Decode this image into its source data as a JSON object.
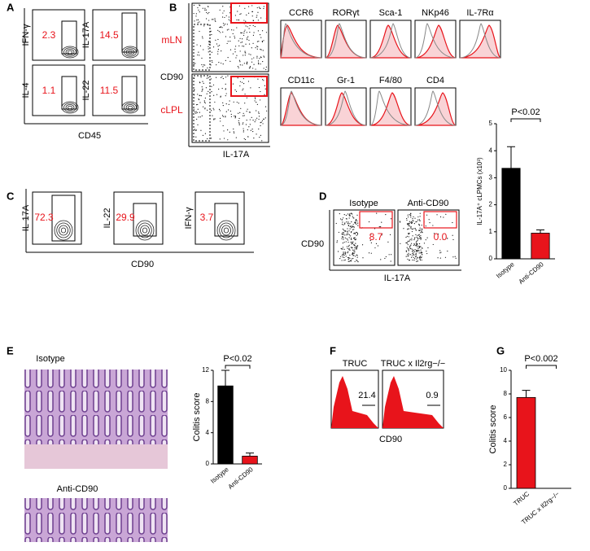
{
  "panels": {
    "A": {
      "letter": "A",
      "x_label": "CD45",
      "gates": [
        {
          "y_label": "IFN-γ",
          "value": "2.3"
        },
        {
          "y_label": "IL-17A",
          "value": "14.5"
        },
        {
          "y_label": "IL-4",
          "value": "1.1"
        },
        {
          "y_label": "IL-22",
          "value": "11.5"
        }
      ]
    },
    "B": {
      "letter": "B",
      "rows": [
        "mLN",
        "cLPL"
      ],
      "y_label": "CD90",
      "x_label": "IL-17A",
      "histograms": [
        "CCR6",
        "RORγt",
        "Sca-1",
        "NKp46",
        "IL-7Rα",
        "CD11c",
        "Gr-1",
        "F4/80",
        "CD4"
      ]
    },
    "C": {
      "letter": "C",
      "x_label": "CD90",
      "gates": [
        {
          "y_label": "IL-17A",
          "value": "72.3"
        },
        {
          "y_label": "IL-22",
          "value": "29.9"
        },
        {
          "y_label": "IFN-γ",
          "value": "3.7"
        }
      ]
    },
    "D": {
      "letter": "D",
      "y_label": "CD90",
      "x_label": "IL-17A",
      "plots": [
        {
          "title": "Isotype",
          "value": "8.7"
        },
        {
          "title": "Anti-CD90",
          "value": "0.0"
        }
      ]
    },
    "E": {
      "letter": "E",
      "images": [
        "Isotype",
        "Anti-CD90"
      ]
    },
    "F": {
      "letter": "F",
      "x_label": "CD90",
      "plots": [
        {
          "title": "TRUC",
          "value": "21.4"
        },
        {
          "title": "TRUC x Il2rg−/−",
          "value": "0.9"
        }
      ]
    },
    "G": {
      "letter": "G"
    }
  },
  "chart_data": [
    {
      "type": "bar",
      "y_label": "IL-17A⁺ cLPMCs (x10³)",
      "categories": [
        "Isotype",
        "Anti-CD90"
      ],
      "values": [
        3.35,
        0.95
      ],
      "errors": [
        0.8,
        0.12
      ],
      "colors": [
        "#000000",
        "#e8141b"
      ],
      "ylim": [
        0,
        5
      ],
      "yticks": [
        0,
        1,
        2,
        3,
        4,
        5
      ],
      "annotation": "P<0.02"
    },
    {
      "type": "bar",
      "y_label": "Colitis score",
      "categories": [
        "Isotype",
        "Anti-CD90"
      ],
      "values": [
        10,
        1
      ],
      "errors": [
        2,
        0.4
      ],
      "colors": [
        "#000000",
        "#e8141b"
      ],
      "ylim": [
        0,
        12
      ],
      "yticks": [
        0,
        4,
        8,
        12
      ],
      "annotation": "P<0.02"
    },
    {
      "type": "bar",
      "y_label": "Colitis score",
      "categories": [
        "TRUC",
        "TRUC x Il2rg−/−"
      ],
      "values": [
        7.7,
        0
      ],
      "errors": [
        0.6,
        0
      ],
      "colors": [
        "#e8141b",
        "#e8141b"
      ],
      "ylim": [
        0,
        10
      ],
      "yticks": [
        0,
        2,
        4,
        6,
        8,
        10
      ],
      "annotation": "P<0.002"
    }
  ]
}
